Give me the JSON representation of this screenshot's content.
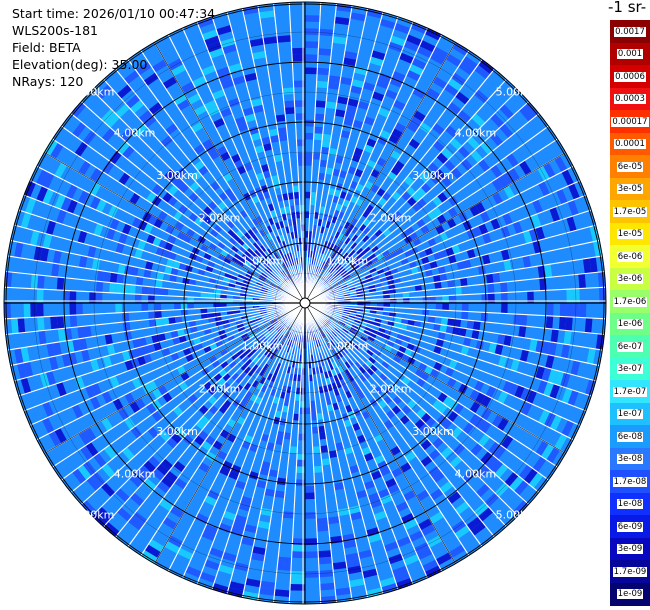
{
  "header": {
    "start_time": "Start time: 2026/01/10 00:47:34",
    "instrument": "WLS200s-181",
    "field": "Field: BETA",
    "elevation": "Elevation(deg): 35.00",
    "nrays": "NRays: 120"
  },
  "units_title": "-1 sr-",
  "range_ring_labels": [
    "1.00km",
    "2.00km",
    "3.00km",
    "4.00km",
    "5.00km"
  ],
  "colorbar": {
    "labels": [
      "0.0017",
      "0.001",
      "0.0006",
      "0.0003",
      "0.00017",
      "0.0001",
      "6e-05",
      "3e-05",
      "1.7e-05",
      "1e-05",
      "6e-06",
      "3e-06",
      "1.7e-06",
      "1e-06",
      "6e-07",
      "3e-07",
      "1.7e-07",
      "1e-07",
      "6e-08",
      "3e-08",
      "1.7e-08",
      "1e-08",
      "6e-09",
      "3e-09",
      "1.7e-09",
      "1e-09"
    ],
    "colors": [
      "#8b0000",
      "#b00000",
      "#d40000",
      "#f01010",
      "#ff3000",
      "#ff5a00",
      "#ff8000",
      "#ffa500",
      "#ffc400",
      "#ffe600",
      "#f2ff30",
      "#c8ff40",
      "#98ff6a",
      "#6eff88",
      "#4dffb0",
      "#3dffd6",
      "#33e6ff",
      "#1ec0ff",
      "#1a9cff",
      "#2a78ff",
      "#1e50ff",
      "#1030ff",
      "#0a1ae6",
      "#0808c0",
      "#06069a",
      "#040470"
    ]
  },
  "colors": {
    "dominant_blue": "#1e8cff",
    "mid_blue": "#1e5aff",
    "cyan": "#19c8ff",
    "dark_blue": "#0a1ad2",
    "ring": "#000000",
    "spoke_gap": "#ffffff"
  }
}
